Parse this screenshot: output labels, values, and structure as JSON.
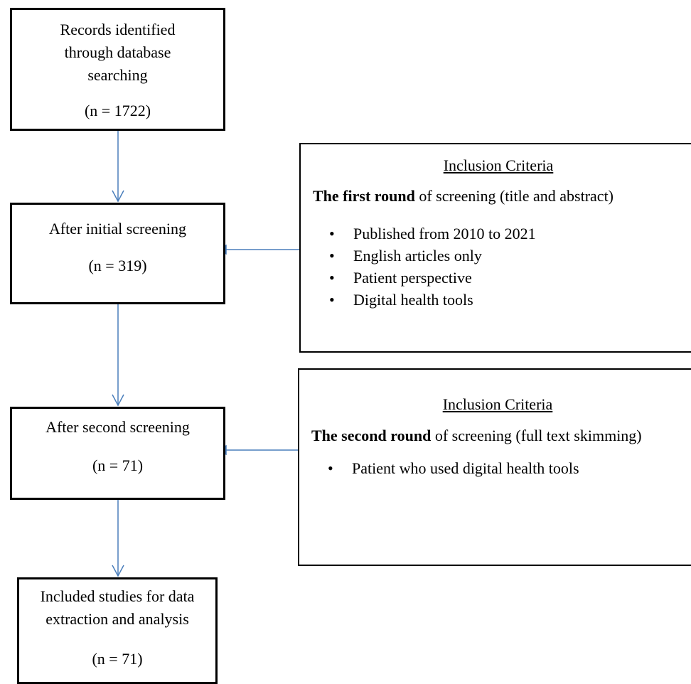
{
  "flow": {
    "step1": {
      "lines": [
        "Records identified",
        "through database",
        "searching"
      ],
      "count": "(n = 1722)"
    },
    "step2": {
      "lines": [
        "After initial screening"
      ],
      "count": "(n = 319)"
    },
    "step3": {
      "lines": [
        "After second screening"
      ],
      "count": "(n = 71)"
    },
    "step4": {
      "lines": [
        "Included studies for data",
        "extraction and analysis"
      ],
      "count": "(n = 71)"
    }
  },
  "criteria1": {
    "title": "Inclusion Criteria",
    "round_bold": "The first round",
    "round_rest": " of screening (title and abstract)",
    "bullets": [
      "Published from 2010 to 2021",
      "English articles only",
      "Patient perspective",
      "Digital health tools"
    ]
  },
  "criteria2": {
    "title": "Inclusion Criteria",
    "round_bold": "The second round",
    "round_rest": " of screening (full text skimming)",
    "bullets": [
      "Patient who used digital health tools"
    ]
  },
  "colors": {
    "arrow": "#4a7ebb",
    "border": "#000000"
  }
}
